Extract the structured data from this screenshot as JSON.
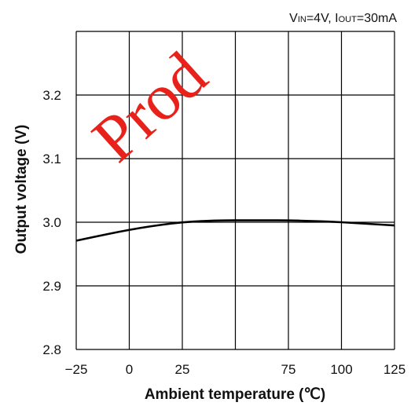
{
  "chart_data": {
    "type": "line",
    "title": "",
    "conditions": {
      "vin_symbol": "V",
      "vin_sub": "IN",
      "vin_value": "=4V, ",
      "iout_symbol": "I",
      "iout_sub": "OUT",
      "iout_value": "=30mA"
    },
    "xlabel": "Ambient temperature (℃)",
    "ylabel": "Output voltage (V)",
    "xlim": [
      -25,
      125
    ],
    "ylim": [
      2.8,
      3.3
    ],
    "xticks": [
      -25,
      0,
      25,
      50,
      75,
      100,
      125
    ],
    "xtick_labels": [
      "−25",
      "0",
      "25",
      "",
      "75",
      "100",
      "125"
    ],
    "yticks": [
      2.8,
      2.9,
      3.0,
      3.1,
      3.2
    ],
    "ytick_labels": [
      "2.8",
      "2.9",
      "3.0",
      "3.1",
      "3.2"
    ],
    "grid": true,
    "series": [
      {
        "x": [
          -25,
          -15,
          -5,
          5,
          15,
          25,
          35,
          45,
          55,
          65,
          75,
          85,
          95,
          105,
          115,
          125
        ],
        "y": [
          2.971,
          2.978,
          2.985,
          2.991,
          2.996,
          3.0,
          3.002,
          3.003,
          3.003,
          3.003,
          3.003,
          3.002,
          3.001,
          2.999,
          2.997,
          2.995
        ],
        "color": "#000000"
      }
    ]
  },
  "watermark": "Prod"
}
